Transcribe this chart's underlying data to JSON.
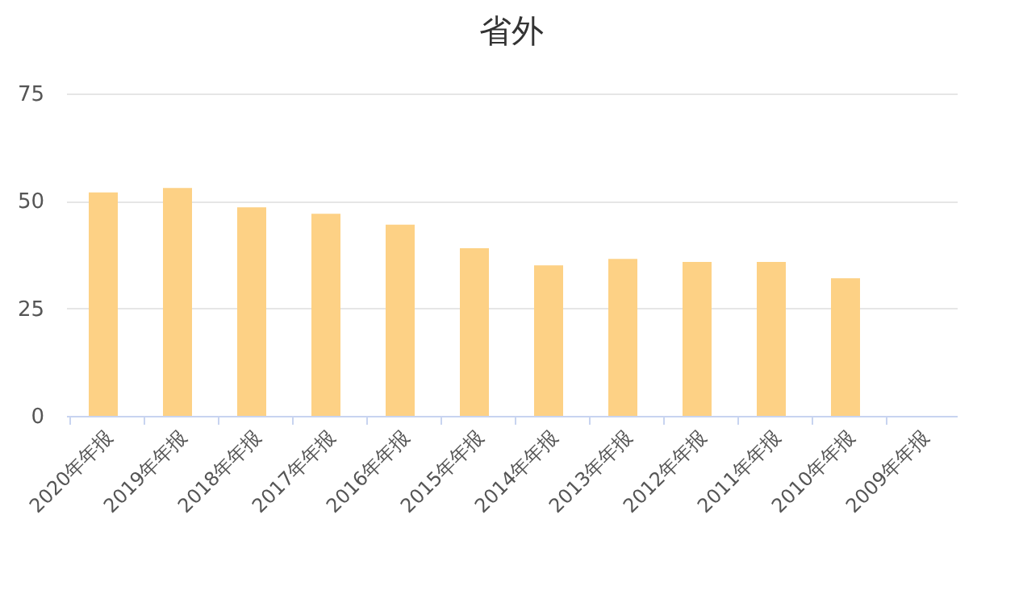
{
  "chart_data": {
    "type": "bar",
    "title": "省外",
    "categories": [
      "2020年年报",
      "2019年年报",
      "2018年年报",
      "2017年年报",
      "2016年年报",
      "2015年年报",
      "2014年年报",
      "2013年年报",
      "2012年年报",
      "2011年年报",
      "2010年年报",
      "2009年年报"
    ],
    "values": [
      52,
      53,
      48.5,
      47,
      44.5,
      39,
      35,
      36.5,
      35.8,
      35.8,
      32,
      null
    ],
    "color": "#fdd185",
    "ylim": [
      0,
      75
    ],
    "yticks": [
      0,
      25,
      50,
      75
    ],
    "grid": "y"
  }
}
